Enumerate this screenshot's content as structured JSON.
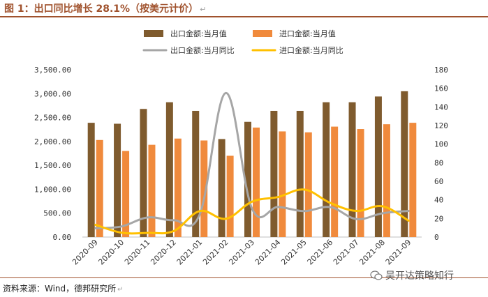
{
  "header": {
    "title": "图 1：出口同比增长 28.1%（按美元计价）",
    "mark": "↵"
  },
  "footer": {
    "source": "资料来源：Wind，德邦研究所",
    "mark": "↵"
  },
  "watermark": {
    "text": "吴开达策略知行",
    "icon": "wechat-bubble-icon"
  },
  "colors": {
    "export_value": "#7f5b2e",
    "import_value": "#f08a3c",
    "export_yoy": "#a6a6a6",
    "import_yoy": "#ffc000",
    "title": "#a0522d"
  },
  "chart_data": {
    "type": "bar+line",
    "categories": [
      "2020-09",
      "2020-10",
      "2020-11",
      "2020-12",
      "2021-01",
      "2021-02",
      "2021-03",
      "2021-04",
      "2021-05",
      "2021-06",
      "2021-07",
      "2021-08",
      "2021-09"
    ],
    "left_axis": {
      "min": 0,
      "max": 3500,
      "step": 500,
      "tick_labels": [
        "0.00",
        "500.00",
        "1,000.00",
        "1,500.00",
        "2,000.00",
        "2,500.00",
        "3,000.00",
        "3,500.00"
      ]
    },
    "right_axis": {
      "min": 0,
      "max": 180,
      "step": 20,
      "tick_labels": [
        "0",
        "20",
        "40",
        "60",
        "80",
        "100",
        "120",
        "140",
        "160",
        "180"
      ]
    },
    "series": [
      {
        "name": "出口金额:当月值",
        "type": "bar",
        "axis": "left",
        "values": [
          2390,
          2370,
          2680,
          2820,
          2640,
          2050,
          2410,
          2640,
          2640,
          2820,
          2820,
          2940,
          3050
        ]
      },
      {
        "name": "进口金额:当月值",
        "type": "bar",
        "axis": "left",
        "values": [
          2030,
          1800,
          1930,
          2060,
          2020,
          1700,
          2290,
          2210,
          2190,
          2310,
          2260,
          2360,
          2390
        ]
      },
      {
        "name": "出口金额:当月同比",
        "type": "line",
        "axis": "right",
        "values": [
          9.5,
          11.4,
          21.1,
          18.1,
          24.7,
          155,
          30.6,
          32.3,
          27.9,
          32.2,
          19.3,
          25.6,
          28.1
        ]
      },
      {
        "name": "进口金额:当月同比",
        "type": "line",
        "axis": "right",
        "values": [
          13.2,
          4.7,
          4.5,
          6.5,
          28,
          19.7,
          38.1,
          43.1,
          51.1,
          36.7,
          28.1,
          33.1,
          17.6
        ]
      }
    ],
    "legend_position": "top",
    "grid": false
  }
}
